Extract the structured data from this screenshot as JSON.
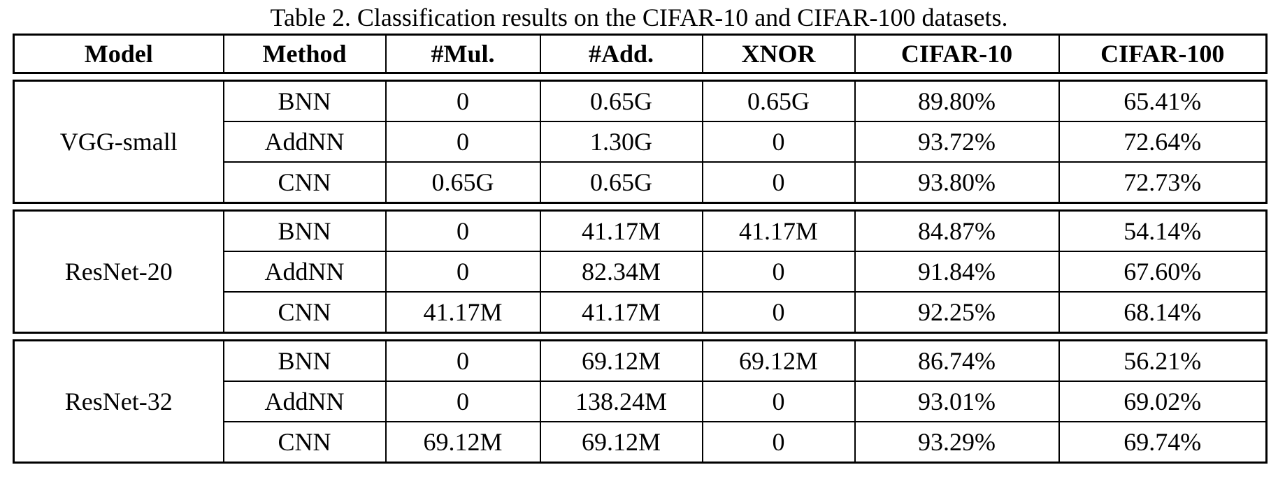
{
  "title": "Table 2. Classification results on the CIFAR-10 and CIFAR-100 datasets.",
  "table": {
    "headers": {
      "model": "Model",
      "method": "Method",
      "mul": "#Mul.",
      "add": "#Add.",
      "xnor": "XNOR",
      "cifar10": "CIFAR-10",
      "cifar100": "CIFAR-100"
    },
    "groups": [
      {
        "model": "VGG-small",
        "rows": [
          {
            "method": "BNN",
            "mul": "0",
            "add": "0.65G",
            "xnor": "0.65G",
            "cifar10": "89.80%",
            "cifar100": "65.41%"
          },
          {
            "method": "AddNN",
            "mul": "0",
            "add": "1.30G",
            "xnor": "0",
            "cifar10": "93.72%",
            "cifar100": "72.64%"
          },
          {
            "method": "CNN",
            "mul": "0.65G",
            "add": "0.65G",
            "xnor": "0",
            "cifar10": "93.80%",
            "cifar100": "72.73%"
          }
        ]
      },
      {
        "model": "ResNet-20",
        "rows": [
          {
            "method": "BNN",
            "mul": "0",
            "add": "41.17M",
            "xnor": "41.17M",
            "cifar10": "84.87%",
            "cifar100": "54.14%"
          },
          {
            "method": "AddNN",
            "mul": "0",
            "add": "82.34M",
            "xnor": "0",
            "cifar10": "91.84%",
            "cifar100": "67.60%"
          },
          {
            "method": "CNN",
            "mul": "41.17M",
            "add": "41.17M",
            "xnor": "0",
            "cifar10": "92.25%",
            "cifar100": "68.14%"
          }
        ]
      },
      {
        "model": "ResNet-32",
        "rows": [
          {
            "method": "BNN",
            "mul": "0",
            "add": "69.12M",
            "xnor": "69.12M",
            "cifar10": "86.74%",
            "cifar100": "56.21%"
          },
          {
            "method": "AddNN",
            "mul": "0",
            "add": "138.24M",
            "xnor": "0",
            "cifar10": "93.01%",
            "cifar100": "69.02%"
          },
          {
            "method": "CNN",
            "mul": "69.12M",
            "add": "69.12M",
            "xnor": "0",
            "cifar10": "93.29%",
            "cifar100": "69.74%"
          }
        ]
      }
    ]
  },
  "colors": {
    "text": "#000000",
    "border": "#000000",
    "background": "#ffffff"
  }
}
